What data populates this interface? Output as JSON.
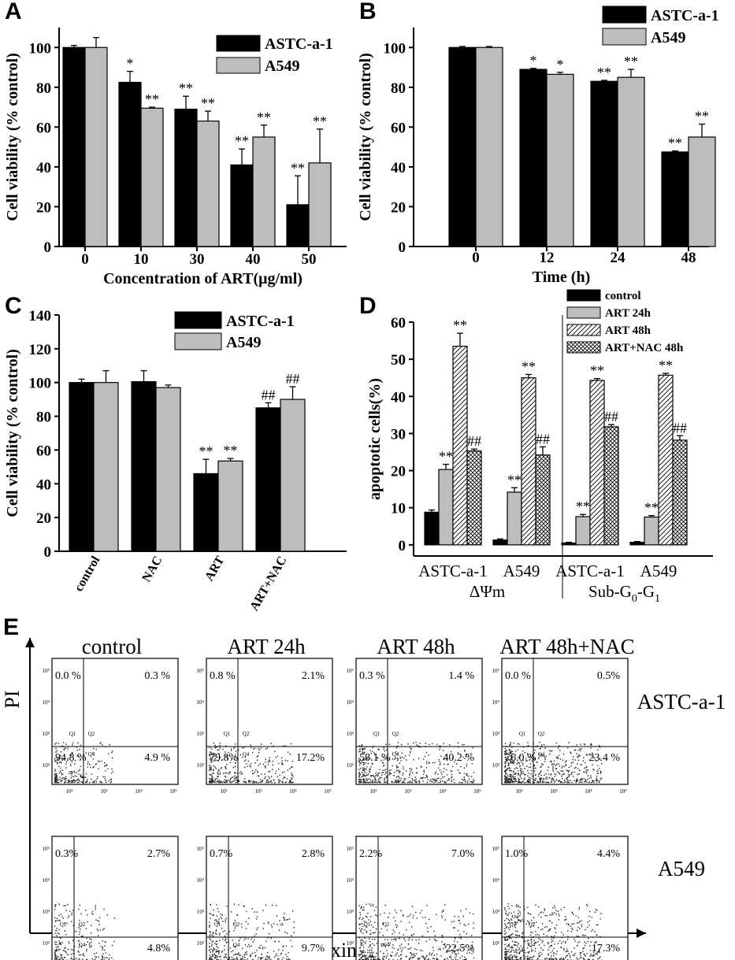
{
  "panel_labels": {
    "A": "A",
    "B": "B",
    "C": "C",
    "D": "D",
    "E": "E"
  },
  "colors": {
    "astc": "#000000",
    "a549": "#bdbdbd",
    "control": "#000000",
    "art24": "#bdbdbd"
  },
  "chart_data": [
    {
      "id": "A",
      "type": "bar",
      "title": "",
      "xlabel": "Concentration of ART(μg/ml)",
      "ylabel": "Cell viability (% control)",
      "ylim": [
        0,
        110
      ],
      "yticks": [
        0,
        20,
        40,
        60,
        80,
        100
      ],
      "categories": [
        "0",
        "10",
        "30",
        "40",
        "50"
      ],
      "legend_position": "top-right",
      "series": [
        {
          "name": "ASTC-a-1",
          "color": "#000000",
          "values": [
            100,
            82.5,
            69,
            41,
            21
          ],
          "errors": [
            1,
            5.5,
            6.5,
            8,
            14.5
          ],
          "annotations": [
            "",
            "*",
            "**",
            "**",
            "**"
          ]
        },
        {
          "name": "A549",
          "color": "#bdbdbd",
          "values": [
            100,
            69.5,
            63,
            55,
            42
          ],
          "errors": [
            5,
            0.5,
            5,
            6,
            17
          ],
          "annotations": [
            "",
            "**",
            "**",
            "**",
            "**"
          ]
        }
      ]
    },
    {
      "id": "B",
      "type": "bar",
      "title": "",
      "xlabel": "Time (h)",
      "ylabel": "Cell viability (% control)",
      "ylim": [
        0,
        110
      ],
      "yticks": [
        0,
        20,
        40,
        60,
        80,
        100
      ],
      "categories": [
        "0",
        "12",
        "24",
        "48"
      ],
      "legend_position": "top-right",
      "series": [
        {
          "name": "ASTC-a-1",
          "color": "#000000",
          "values": [
            100,
            89,
            83,
            47.5
          ],
          "errors": [
            0.5,
            0.5,
            0.5,
            0.5
          ],
          "annotations": [
            "",
            "*",
            "**",
            "**"
          ]
        },
        {
          "name": "A549",
          "color": "#bdbdbd",
          "values": [
            100,
            86.5,
            85,
            55
          ],
          "errors": [
            0.5,
            1,
            4,
            6.5
          ],
          "annotations": [
            "",
            "*",
            "**",
            "**"
          ]
        }
      ]
    },
    {
      "id": "C",
      "type": "bar",
      "title": "",
      "xlabel": "",
      "ylabel": "Cell viability (% control)",
      "ylim": [
        0,
        140
      ],
      "yticks": [
        0,
        20,
        40,
        60,
        80,
        100,
        120,
        140
      ],
      "categories": [
        "control",
        "NAC",
        "ART",
        "ART+NAC"
      ],
      "legend_position": "top-right",
      "series": [
        {
          "name": "ASTC-a-1",
          "color": "#000000",
          "values": [
            100,
            100.5,
            46,
            85
          ],
          "errors": [
            2,
            6.5,
            8.5,
            3
          ],
          "annotations": [
            "",
            "",
            "**",
            "##"
          ]
        },
        {
          "name": "A549",
          "color": "#bdbdbd",
          "values": [
            100,
            97,
            53.5,
            90
          ],
          "errors": [
            7,
            1.5,
            1.5,
            7.5
          ],
          "annotations": [
            "",
            "",
            "**",
            "##"
          ]
        }
      ]
    },
    {
      "id": "D",
      "type": "bar",
      "title": "",
      "xlabel": "",
      "ylabel": "apoptotic cells(%)",
      "ylim": [
        -3,
        60
      ],
      "yticks": [
        0,
        10,
        20,
        30,
        40,
        50,
        60
      ],
      "categories": [
        "ASTC-a-1",
        "A549",
        "ASTC-a-1",
        "A549"
      ],
      "groups": [
        {
          "label": "ΔΨm",
          "span": [
            0,
            1
          ]
        },
        {
          "label": "Sub-G",
          "sub1": "0",
          "mid": "-G",
          "sub2": "1",
          "span": [
            2,
            3
          ]
        }
      ],
      "legend_position": "top-right",
      "series": [
        {
          "name": "control",
          "pattern": "solid",
          "values": [
            8.8,
            1.3,
            0.5,
            0.7
          ],
          "errors": [
            0.6,
            0.3,
            0.2,
            0.2
          ],
          "annotations": [
            "",
            "",
            "",
            ""
          ]
        },
        {
          "name": "ART 24h",
          "pattern": "gray",
          "values": [
            20.3,
            14.2,
            7.6,
            7.5
          ],
          "errors": [
            1.4,
            1.2,
            0.6,
            0.4
          ],
          "annotations": [
            "**",
            "**",
            "**",
            "**"
          ]
        },
        {
          "name": "ART 48h",
          "pattern": "diagonal",
          "values": [
            53.5,
            45,
            44.3,
            45.7
          ],
          "errors": [
            3.5,
            0.9,
            0.5,
            0.5
          ],
          "annotations": [
            "**",
            "**",
            "**",
            "**"
          ]
        },
        {
          "name": "ART+NAC 48h",
          "pattern": "crosshatch",
          "values": [
            25.3,
            24.2,
            31.8,
            28.2
          ],
          "errors": [
            0.5,
            2.2,
            0.6,
            1.2
          ],
          "annotations": [
            "##",
            "##",
            "##",
            "##"
          ]
        }
      ]
    }
  ],
  "panelE": {
    "column_titles": [
      "control",
      "ART 24h",
      "ART 48h",
      "ART 48h+NAC"
    ],
    "row_labels": [
      "ASTC-a-1",
      "A549"
    ],
    "y_axis_label": "PI",
    "x_axis_label": "Annexin V-FITC",
    "y_tick_labels": [
      "10⁵",
      "10⁴",
      "10³",
      "10²"
    ],
    "x_tick_labels": [
      "10²",
      "10³",
      "10⁴",
      "10⁵"
    ],
    "quadrant_labels": [
      "Q1",
      "Q2",
      "Q4"
    ],
    "plots": [
      [
        {
          "ul": "0.0 %",
          "ur": "0.3 %",
          "ll": "94.8 %",
          "lr": "4.9 %"
        },
        {
          "ul": "0.8 %",
          "ur": "2.1%",
          "ll": "79.8%",
          "lr": "17.2%"
        },
        {
          "ul": "0.3 %",
          "ur": "1.4 %",
          "ll": "58.1 %",
          "lr": "40.2 %"
        },
        {
          "ul": "0.0 %",
          "ur": "0.5%",
          "ll": "76.0 %",
          "lr": "23.4 %"
        }
      ],
      [
        {
          "ul": "0.3%",
          "ur": "2.7%",
          "ll": "",
          "lr": "4.8%"
        },
        {
          "ul": "0.7%",
          "ur": "2.8%",
          "ll": "",
          "lr": "9.7%"
        },
        {
          "ul": "2.2%",
          "ur": "7.0%",
          "ll": "",
          "lr": "22.5%"
        },
        {
          "ul": "1.0%",
          "ur": "4.4%",
          "ll": "",
          "lr": "17.3%"
        }
      ]
    ]
  }
}
